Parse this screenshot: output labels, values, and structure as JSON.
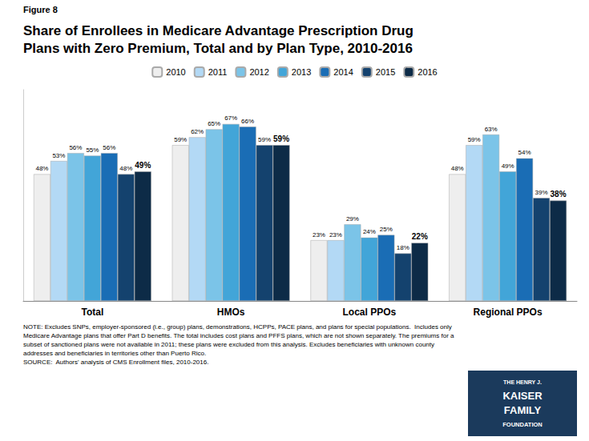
{
  "chart_data": {
    "type": "bar",
    "title": "Share of Enrollees in Medicare Advantage Prescription Drug\nPlans with Zero Premium, Total and by Plan Type, 2010-2016",
    "categories": [
      "Total",
      "HMOs",
      "Local PPOs",
      "Regional PPOs"
    ],
    "series": [
      {
        "name": "2010",
        "color": "#eeeeee",
        "values": [
          48,
          59,
          23,
          48
        ],
        "value_labels": [
          "48%",
          "59%",
          "23%",
          "48%"
        ]
      },
      {
        "name": "2011",
        "color": "#b3d9f5",
        "values": [
          53,
          62,
          23,
          59
        ],
        "value_labels": [
          "53%",
          "62%",
          "23%",
          "59%"
        ]
      },
      {
        "name": "2012",
        "color": "#7bc4e8",
        "values": [
          56,
          65,
          29,
          63
        ],
        "value_labels": [
          "56%",
          "65%",
          "29%",
          "63%"
        ]
      },
      {
        "name": "2013",
        "color": "#42a5d8",
        "values": [
          55,
          67,
          24,
          49
        ],
        "value_labels": [
          "55%",
          "67%",
          "24%",
          "49%"
        ]
      },
      {
        "name": "2014",
        "color": "#1a6db5",
        "values": [
          56,
          66,
          25,
          54
        ],
        "value_labels": [
          "56%",
          "66%",
          "25%",
          "54%"
        ]
      },
      {
        "name": "2015",
        "color": "#14426e",
        "values": [
          48,
          59,
          18,
          39
        ],
        "value_labels": [
          "48%",
          "59%",
          "18%",
          "39%"
        ]
      },
      {
        "name": "2016",
        "color": "#0d2b47",
        "values": [
          49,
          59,
          22,
          38
        ],
        "value_labels": [
          "49%",
          "59%",
          "22%",
          "38%"
        ]
      }
    ],
    "ylim": [
      0,
      80
    ],
    "grid": false,
    "legend": "top",
    "data_labels": true,
    "tick_labels": "x",
    "annotations": [
      "Figure 8",
      "NOTE: Excludes SNPs, employer-sponsored (i.e., group) plans, demonstrations, HCPPs, PACE plans, and plans for special populations.  Includes only\nMedicare Advantage plans that offer Part D benefits. The total includes cost plans and PFFS plans, which are not shown separately. The premiums for a\nsubset of sanctioned plans were not available in 2011; these plans were excluded from this analysis. Excludes beneficiaries with unknown county\naddresses and beneficiaries in territories other than Puerto Rico.\nSOURCE:  Authors' analysis of CMS Enrollment files, 2010-2016.",
      "THE HENRY J.",
      "KAISER",
      "FAMILY",
      "FOUNDATION"
    ]
  }
}
